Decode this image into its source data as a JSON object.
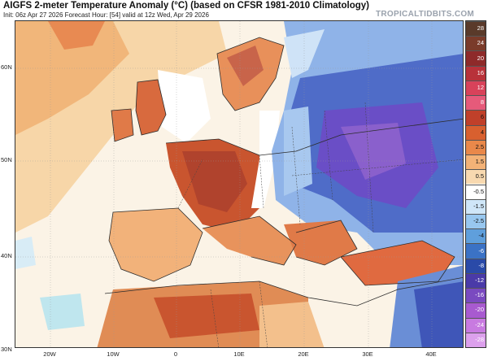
{
  "header": {
    "title": "AIGFS 2-meter Temperature Anomaly (°C) (based on CFSR 1981-2010 Climatology)",
    "subtitle": "Init: 06z Apr 27 2026   Forecast Hour: [54]   valid at 12z Wed, Apr 29 2026",
    "brand": "TROPICALTIDBITS.COM"
  },
  "axes": {
    "lat_labels": [
      "60N",
      "50N",
      "40N",
      "30N"
    ],
    "lon_labels": [
      "20W",
      "10W",
      "0",
      "10E",
      "20E",
      "30E",
      "40E"
    ]
  },
  "colorbar": {
    "labels": [
      "28",
      "24",
      "20",
      "16",
      "12",
      "8",
      "6",
      "4",
      "2.5",
      "1.5",
      "0.5",
      "-0.5",
      "-1.5",
      "-2.5",
      "-4",
      "-6",
      "-8",
      "-12",
      "-16",
      "-20",
      "-24",
      "-28"
    ],
    "colors": [
      "#5a3a2a",
      "#7a3b2a",
      "#8e2a2a",
      "#b8323a",
      "#d8425a",
      "#e65a7a",
      "#c0402a",
      "#d8602f",
      "#e9884a",
      "#f3b277",
      "#f8d9b0",
      "#ffffff",
      "#cfe6f8",
      "#98c7ef",
      "#5f9fdc",
      "#3b72c5",
      "#2a4aa8",
      "#4a3aa8",
      "#7a4ac0",
      "#a85ad0",
      "#c87ae0",
      "#dca0ec"
    ]
  },
  "map_colors": {
    "ocean": "#fbf4ea",
    "warm_light": "#f6d8ae",
    "warm": "#ef9e62",
    "warm_strong": "#d66236",
    "hot": "#b84628",
    "cold_light": "#cfe3f7",
    "cold": "#5d86d4",
    "cold_strong": "#3b4fb8",
    "cold_deep": "#6045c0",
    "coast": "#333333"
  }
}
